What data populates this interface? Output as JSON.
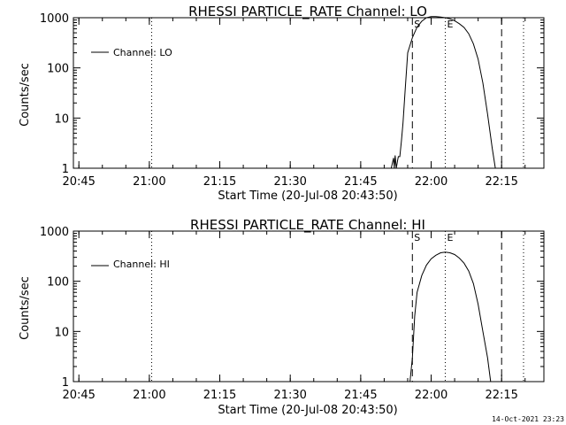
{
  "footer": {
    "timestamp": "14-Oct-2021 23:23"
  },
  "chart_data": [
    {
      "type": "line",
      "title": "RHESSI PARTICLE_RATE Channel: LO",
      "xlabel": "Start Time (20-Jul-08 20:43:50)",
      "ylabel": "Counts/sec",
      "xlim": [
        "20:43:50",
        "22:24:00"
      ],
      "ylim": [
        1,
        1000
      ],
      "yscale": "log",
      "x_ticks": [
        "20:45",
        "21:00",
        "21:15",
        "21:30",
        "21:45",
        "22:00",
        "22:15"
      ],
      "y_ticks": [
        "1",
        "10",
        "100",
        "1000"
      ],
      "legend": {
        "position": "top-left",
        "entries": [
          "Channel: LO"
        ]
      },
      "series": [
        {
          "name": "Channel: LO",
          "x": [
            "21:51:30",
            "21:52:00",
            "21:52:10",
            "21:52:20",
            "21:52:35",
            "21:52:50",
            "21:53:00",
            "21:53:20",
            "21:53:40",
            "21:54:00",
            "21:54:30",
            "21:55:00",
            "21:56:00",
            "21:57:00",
            "21:58:00",
            "21:59:00",
            "22:00:00",
            "22:01:00",
            "22:02:00",
            "22:03:00",
            "22:04:00",
            "22:05:00",
            "22:06:00",
            "22:07:00",
            "22:08:00",
            "22:09:00",
            "22:10:00",
            "22:11:00",
            "22:12:00",
            "22:13:00",
            "22:13:40"
          ],
          "y": [
            1,
            1.6,
            1,
            1.8,
            1,
            1.4,
            1.7,
            1.7,
            3.5,
            8,
            40,
            200,
            400,
            650,
            850,
            1000,
            1050,
            1050,
            1030,
            1000,
            950,
            870,
            760,
            640,
            480,
            300,
            150,
            50,
            12,
            2.5,
            1
          ]
        }
      ],
      "markers": [
        {
          "label": "S",
          "x": "21:56:00",
          "style": "dashed"
        },
        {
          "label": "E",
          "x": "22:03:00",
          "style": "dotted"
        }
      ],
      "vertical_lines": [
        {
          "x": "21:00:30",
          "style": "dotted"
        },
        {
          "x": "22:15:00",
          "style": "dashed"
        },
        {
          "x": "22:19:40",
          "style": "dotted"
        }
      ]
    },
    {
      "type": "line",
      "title": "RHESSI PARTICLE_RATE Channel: HI",
      "xlabel": "Start Time (20-Jul-08 20:43:50)",
      "ylabel": "Counts/sec",
      "xlim": [
        "20:43:50",
        "22:24:00"
      ],
      "ylim": [
        1,
        1000
      ],
      "yscale": "log",
      "x_ticks": [
        "20:45",
        "21:00",
        "21:15",
        "21:30",
        "21:45",
        "22:00",
        "22:15"
      ],
      "y_ticks": [
        "1",
        "10",
        "100",
        "1000"
      ],
      "legend": {
        "position": "top-left",
        "entries": [
          "Channel: HI"
        ]
      },
      "series": [
        {
          "name": "Channel: HI",
          "x": [
            "21:55:30",
            "21:56:00",
            "21:56:30",
            "21:57:00",
            "21:58:00",
            "21:59:00",
            "22:00:00",
            "22:01:00",
            "22:02:00",
            "22:03:00",
            "22:04:00",
            "22:05:00",
            "22:06:00",
            "22:07:00",
            "22:08:00",
            "22:09:00",
            "22:10:00",
            "22:11:00",
            "22:12:00",
            "22:12:40"
          ],
          "y": [
            1,
            3,
            20,
            60,
            130,
            210,
            280,
            330,
            370,
            380,
            370,
            340,
            290,
            230,
            160,
            90,
            35,
            10,
            3,
            1
          ]
        }
      ],
      "markers": [
        {
          "label": "S",
          "x": "21:56:00",
          "style": "dashed"
        },
        {
          "label": "E",
          "x": "22:03:00",
          "style": "dotted"
        }
      ],
      "vertical_lines": [
        {
          "x": "21:00:30",
          "style": "dotted"
        },
        {
          "x": "22:15:00",
          "style": "dashed"
        },
        {
          "x": "22:19:40",
          "style": "dotted"
        }
      ]
    }
  ]
}
